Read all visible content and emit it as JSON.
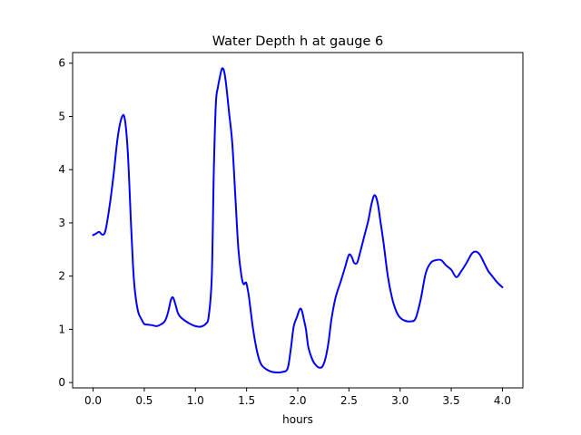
{
  "chart_data": {
    "type": "line",
    "title": "Water Depth h at gauge 6",
    "xlabel": "hours",
    "ylabel": "",
    "xlim": [
      -0.2,
      4.2
    ],
    "ylim": [
      -0.1,
      6.2
    ],
    "xticks": [
      0.0,
      0.5,
      1.0,
      1.5,
      2.0,
      2.5,
      3.0,
      3.5,
      4.0
    ],
    "xtick_labels": [
      "0.0",
      "0.5",
      "1.0",
      "1.5",
      "2.0",
      "2.5",
      "3.0",
      "3.5",
      "4.0"
    ],
    "yticks": [
      0,
      1,
      2,
      3,
      4,
      5,
      6
    ],
    "ytick_labels": [
      "0",
      "1",
      "2",
      "3",
      "4",
      "5",
      "6"
    ],
    "grid": false,
    "line_color": "#0000ff",
    "series": [
      {
        "x": [
          0.0,
          0.03,
          0.06,
          0.09,
          0.12,
          0.16,
          0.2,
          0.24,
          0.28,
          0.31,
          0.34,
          0.37,
          0.39,
          0.41,
          0.44,
          0.47,
          0.5,
          0.53,
          0.57,
          0.62,
          0.66,
          0.7,
          0.73,
          0.76,
          0.78,
          0.8,
          0.83,
          0.86,
          0.9,
          0.95,
          1.0,
          1.05,
          1.1,
          1.13,
          1.16,
          1.18,
          1.2,
          1.22,
          1.24,
          1.26,
          1.28,
          1.3,
          1.33,
          1.36,
          1.39,
          1.42,
          1.45,
          1.47,
          1.49,
          1.5,
          1.52,
          1.54,
          1.56,
          1.59,
          1.62,
          1.65,
          1.7,
          1.75,
          1.8,
          1.85,
          1.9,
          1.93,
          1.96,
          1.99,
          2.02,
          2.04,
          2.06,
          2.08,
          2.1,
          2.12,
          2.15,
          2.18,
          2.21,
          2.24,
          2.27,
          2.3,
          2.33,
          2.37,
          2.42,
          2.46,
          2.5,
          2.53,
          2.55,
          2.58,
          2.61,
          2.65,
          2.69,
          2.72,
          2.75,
          2.78,
          2.81,
          2.84,
          2.88,
          2.92,
          2.96,
          3.0,
          3.05,
          3.1,
          3.15,
          3.2,
          3.25,
          3.3,
          3.35,
          3.4,
          3.45,
          3.5,
          3.55,
          3.6,
          3.65,
          3.7,
          3.74,
          3.78,
          3.82,
          3.86,
          3.9,
          3.95,
          4.0
        ],
        "y": [
          2.77,
          2.8,
          2.83,
          2.78,
          2.85,
          3.3,
          3.9,
          4.6,
          4.98,
          4.95,
          4.3,
          3.0,
          2.2,
          1.7,
          1.33,
          1.2,
          1.1,
          1.09,
          1.08,
          1.06,
          1.09,
          1.15,
          1.3,
          1.55,
          1.6,
          1.5,
          1.3,
          1.22,
          1.16,
          1.1,
          1.06,
          1.05,
          1.1,
          1.25,
          2.0,
          4.0,
          5.25,
          5.55,
          5.75,
          5.9,
          5.85,
          5.6,
          5.05,
          4.5,
          3.5,
          2.5,
          2.0,
          1.85,
          1.88,
          1.85,
          1.65,
          1.35,
          1.05,
          0.7,
          0.45,
          0.32,
          0.24,
          0.2,
          0.19,
          0.2,
          0.26,
          0.6,
          1.05,
          1.22,
          1.38,
          1.35,
          1.18,
          1.0,
          0.7,
          0.55,
          0.4,
          0.32,
          0.28,
          0.3,
          0.45,
          0.75,
          1.2,
          1.6,
          1.9,
          2.15,
          2.4,
          2.35,
          2.25,
          2.25,
          2.45,
          2.75,
          3.05,
          3.35,
          3.52,
          3.38,
          3.0,
          2.6,
          2.0,
          1.6,
          1.35,
          1.22,
          1.16,
          1.15,
          1.2,
          1.55,
          2.05,
          2.25,
          2.3,
          2.3,
          2.2,
          2.12,
          1.98,
          2.1,
          2.25,
          2.42,
          2.46,
          2.4,
          2.25,
          2.1,
          2.0,
          1.88,
          1.79
        ]
      }
    ]
  }
}
